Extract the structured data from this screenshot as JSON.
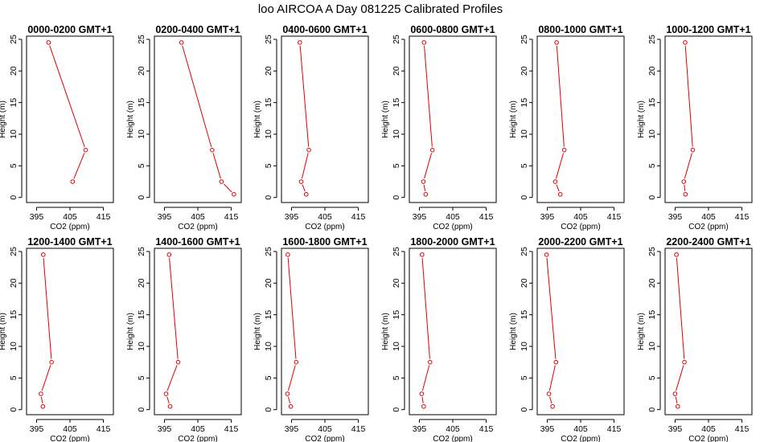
{
  "figure": {
    "title": "loo AIRCOA A  Day 081225  Calibrated Profiles"
  },
  "colors": {
    "series": "#e00000",
    "axes": "#000000",
    "background": "#ffffff"
  },
  "chart_data": [
    {
      "type": "line",
      "title": "0000-0200 GMT+1",
      "xlabel": "CO2 (ppm)",
      "ylabel": "Height (m)",
      "xlim": [
        392,
        418
      ],
      "ylim": [
        -0.8,
        25.5
      ],
      "x_ticks": [
        395,
        405,
        415
      ],
      "y_ticks": [
        0,
        5,
        10,
        15,
        20,
        25
      ],
      "grid": false,
      "legend": "none",
      "x": [
        null,
        405.8,
        409.7,
        398.6
      ],
      "y": [
        0.5,
        2.5,
        7.5,
        24.5
      ]
    },
    {
      "type": "line",
      "title": "0200-0400 GMT+1",
      "xlabel": "CO2 (ppm)",
      "ylabel": "Height (m)",
      "xlim": [
        392,
        418
      ],
      "ylim": [
        -0.8,
        25.5
      ],
      "x_ticks": [
        395,
        405,
        415
      ],
      "y_ticks": [
        0,
        5,
        10,
        15,
        20,
        25
      ],
      "grid": false,
      "legend": "none",
      "x": [
        415.8,
        412.1,
        409.3,
        400.1
      ],
      "y": [
        0.5,
        2.5,
        7.5,
        24.5
      ]
    },
    {
      "type": "line",
      "title": "0400-0600 GMT+1",
      "xlabel": "CO2 (ppm)",
      "ylabel": "Height (m)",
      "xlim": [
        392,
        418
      ],
      "ylim": [
        -0.8,
        25.5
      ],
      "x_ticks": [
        395,
        405,
        415
      ],
      "y_ticks": [
        0,
        5,
        10,
        15,
        20,
        25
      ],
      "grid": false,
      "legend": "none",
      "x": [
        399.4,
        397.9,
        400.2,
        397.5
      ],
      "y": [
        0.5,
        2.5,
        7.5,
        24.5
      ]
    },
    {
      "type": "line",
      "title": "0600-0800 GMT+1",
      "xlabel": "CO2 (ppm)",
      "ylabel": "Height (m)",
      "xlim": [
        392,
        418
      ],
      "ylim": [
        -0.8,
        25.5
      ],
      "x_ticks": [
        395,
        405,
        415
      ],
      "y_ticks": [
        0,
        5,
        10,
        15,
        20,
        25
      ],
      "grid": false,
      "legend": "none",
      "x": [
        396.9,
        396.2,
        398.9,
        396.4
      ],
      "y": [
        0.5,
        2.5,
        7.5,
        24.5
      ]
    },
    {
      "type": "line",
      "title": "0800-1000 GMT+1",
      "xlabel": "CO2 (ppm)",
      "ylabel": "Height (m)",
      "xlim": [
        392,
        418
      ],
      "ylim": [
        -0.8,
        25.5
      ],
      "x_ticks": [
        395,
        405,
        415
      ],
      "y_ticks": [
        0,
        5,
        10,
        15,
        20,
        25
      ],
      "grid": false,
      "legend": "none",
      "x": [
        398.9,
        397.4,
        400.1,
        397.8
      ],
      "y": [
        0.5,
        2.5,
        7.5,
        24.5
      ]
    },
    {
      "type": "line",
      "title": "1000-1200 GMT+1",
      "xlabel": "CO2 (ppm)",
      "ylabel": "Height (m)",
      "xlim": [
        392,
        418
      ],
      "ylim": [
        -0.8,
        25.5
      ],
      "x_ticks": [
        395,
        405,
        415
      ],
      "y_ticks": [
        0,
        5,
        10,
        15,
        20,
        25
      ],
      "grid": false,
      "legend": "none",
      "x": [
        398.1,
        397.6,
        400.3,
        398.0
      ],
      "y": [
        0.5,
        2.5,
        7.5,
        24.5
      ]
    },
    {
      "type": "line",
      "title": "1200-1400 GMT+1",
      "xlabel": "CO2 (ppm)",
      "ylabel": "Height (m)",
      "xlim": [
        392,
        418
      ],
      "ylim": [
        -0.8,
        25.5
      ],
      "x_ticks": [
        395,
        405,
        415
      ],
      "y_ticks": [
        0,
        5,
        10,
        15,
        20,
        25
      ],
      "grid": false,
      "legend": "none",
      "x": [
        396.9,
        396.3,
        399.5,
        397.0
      ],
      "y": [
        0.5,
        2.5,
        7.5,
        24.5
      ]
    },
    {
      "type": "line",
      "title": "1400-1600 GMT+1",
      "xlabel": "CO2 (ppm)",
      "ylabel": "Height (m)",
      "xlim": [
        392,
        418
      ],
      "ylim": [
        -0.8,
        25.5
      ],
      "x_ticks": [
        395,
        405,
        415
      ],
      "y_ticks": [
        0,
        5,
        10,
        15,
        20,
        25
      ],
      "grid": false,
      "legend": "none",
      "x": [
        396.7,
        395.5,
        399.1,
        396.4
      ],
      "y": [
        0.5,
        2.5,
        7.5,
        24.5
      ]
    },
    {
      "type": "line",
      "title": "1600-1800 GMT+1",
      "xlabel": "CO2 (ppm)",
      "ylabel": "Height (m)",
      "xlim": [
        392,
        418
      ],
      "ylim": [
        -0.8,
        25.5
      ],
      "x_ticks": [
        395,
        405,
        415
      ],
      "y_ticks": [
        0,
        5,
        10,
        15,
        20,
        25
      ],
      "grid": false,
      "legend": "none",
      "x": [
        394.8,
        393.8,
        396.4,
        393.9
      ],
      "y": [
        0.5,
        2.5,
        7.5,
        24.5
      ]
    },
    {
      "type": "line",
      "title": "1800-2000 GMT+1",
      "xlabel": "CO2 (ppm)",
      "ylabel": "Height (m)",
      "xlim": [
        392,
        418
      ],
      "ylim": [
        -0.8,
        25.5
      ],
      "x_ticks": [
        395,
        405,
        415
      ],
      "y_ticks": [
        0,
        5,
        10,
        15,
        20,
        25
      ],
      "grid": false,
      "legend": "none",
      "x": [
        396.3,
        395.7,
        398.2,
        395.8
      ],
      "y": [
        0.5,
        2.5,
        7.5,
        24.5
      ]
    },
    {
      "type": "line",
      "title": "2000-2200 GMT+1",
      "xlabel": "CO2 (ppm)",
      "ylabel": "Height (m)",
      "xlim": [
        392,
        418
      ],
      "ylim": [
        -0.8,
        25.5
      ],
      "x_ticks": [
        395,
        405,
        415
      ],
      "y_ticks": [
        0,
        5,
        10,
        15,
        20,
        25
      ],
      "grid": false,
      "legend": "none",
      "x": [
        396.6,
        395.5,
        397.6,
        394.8
      ],
      "y": [
        0.5,
        2.5,
        7.5,
        24.5
      ]
    },
    {
      "type": "line",
      "title": "2200-2400 GMT+1",
      "xlabel": "CO2 (ppm)",
      "ylabel": "Height (m)",
      "xlim": [
        392,
        418
      ],
      "ylim": [
        -0.8,
        25.5
      ],
      "x_ticks": [
        395,
        405,
        415
      ],
      "y_ticks": [
        0,
        5,
        10,
        15,
        20,
        25
      ],
      "grid": false,
      "legend": "none",
      "x": [
        395.8,
        395.0,
        397.8,
        395.4
      ],
      "y": [
        0.5,
        2.5,
        7.5,
        24.5
      ]
    }
  ]
}
